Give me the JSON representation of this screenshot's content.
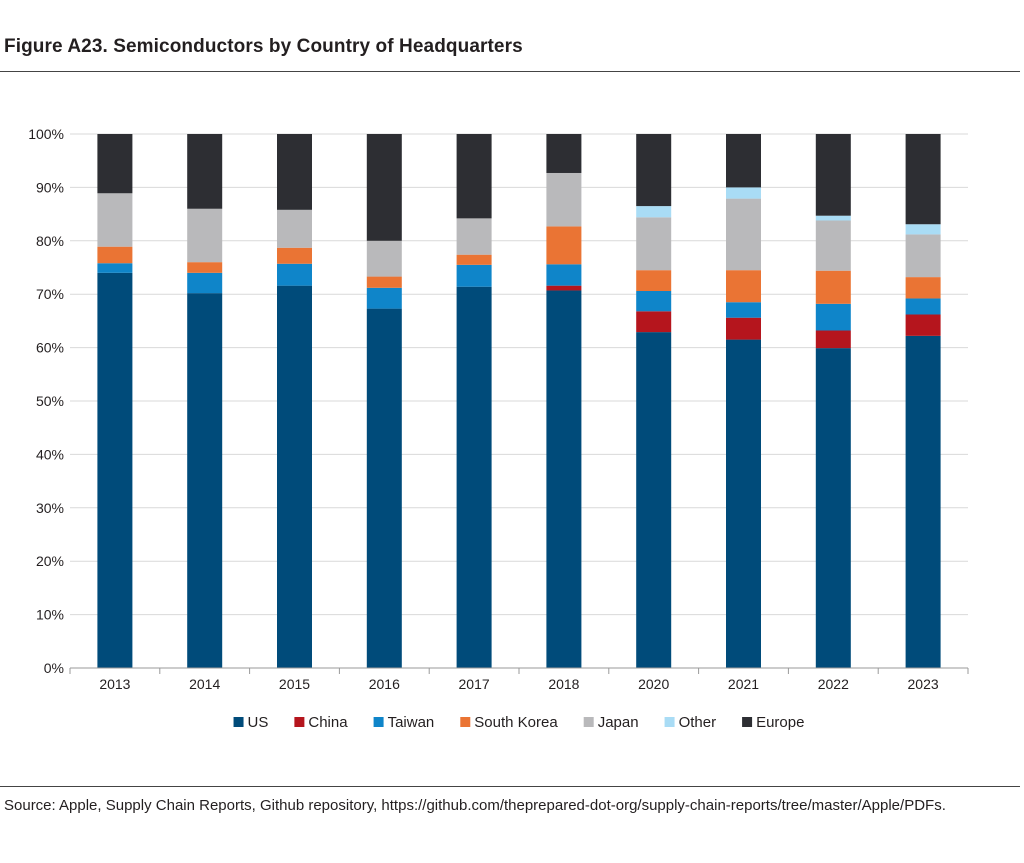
{
  "figure": {
    "title": "Figure A23. Semiconductors by Country of Headquarters",
    "source": "Source: Apple, Supply Chain Reports, Github repository, https://github.com/theprepared-dot-org/supply-chain-reports/tree/master/Apple/PDFs."
  },
  "chart_data": {
    "type": "bar",
    "stacked": true,
    "categories": [
      "2013",
      "2014",
      "2015",
      "2016",
      "2017",
      "2018",
      "2020",
      "2021",
      "2022",
      "2023"
    ],
    "series": [
      {
        "name": "US",
        "color": "#004b7a",
        "values": [
          74,
          70.2,
          71.6,
          67.3,
          71.4,
          70.7,
          62.9,
          61.5,
          59.9,
          62.2
        ]
      },
      {
        "name": "China",
        "color": "#b5151d",
        "values": [
          0,
          0,
          0,
          0,
          0,
          0.9,
          3.9,
          4.1,
          3.3,
          4.0
        ]
      },
      {
        "name": "Taiwan",
        "color": "#0f85c9",
        "values": [
          1.8,
          3.8,
          4.1,
          3.9,
          4.1,
          4.0,
          3.8,
          2.9,
          5.0,
          3.0
        ]
      },
      {
        "name": "South Korea",
        "color": "#ea7434",
        "values": [
          3.1,
          2.0,
          3.0,
          2.1,
          1.9,
          7.1,
          3.9,
          6.0,
          6.2,
          4.0
        ]
      },
      {
        "name": "Japan",
        "color": "#b9b9bb",
        "values": [
          10.0,
          10.0,
          7.1,
          6.7,
          6.8,
          10.0,
          9.9,
          13.4,
          9.4,
          8.0
        ]
      },
      {
        "name": "Other",
        "color": "#a9dcf5",
        "values": [
          0,
          0,
          0,
          0,
          0,
          0,
          2.1,
          2.1,
          0.9,
          1.9
        ]
      },
      {
        "name": "Europe",
        "color": "#2d2e33",
        "values": [
          11.1,
          14.0,
          14.2,
          20.0,
          15.8,
          7.3,
          13.5,
          10.0,
          15.3,
          16.9
        ]
      }
    ],
    "yticks": [
      "0%",
      "10%",
      "20%",
      "30%",
      "40%",
      "50%",
      "60%",
      "70%",
      "80%",
      "90%",
      "100%"
    ],
    "ylim": [
      0,
      100
    ],
    "grid": true,
    "legend_position": "bottom"
  }
}
